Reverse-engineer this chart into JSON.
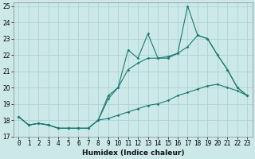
{
  "xlabel": "Humidex (Indice chaleur)",
  "bg_color": "#cce8e8",
  "grid_color": "#aad4d4",
  "line_color": "#1a7a6e",
  "xlim": [
    -0.5,
    23.5
  ],
  "ylim": [
    17,
    25.2
  ],
  "x_ticks": [
    0,
    1,
    2,
    3,
    4,
    5,
    6,
    7,
    8,
    9,
    10,
    11,
    12,
    13,
    14,
    15,
    16,
    17,
    18,
    19,
    20,
    21,
    22,
    23
  ],
  "y_ticks": [
    17,
    18,
    19,
    20,
    21,
    22,
    23,
    24,
    25
  ],
  "series_top_x": [
    0,
    1,
    2,
    3,
    4,
    5,
    6,
    7,
    8,
    9,
    10,
    11,
    12,
    13,
    14,
    15,
    16,
    17,
    18,
    19,
    20,
    21,
    22,
    23
  ],
  "series_top_y": [
    18.2,
    17.7,
    17.8,
    17.7,
    17.5,
    17.5,
    17.5,
    17.5,
    18.0,
    19.5,
    20.0,
    22.3,
    21.8,
    23.3,
    21.8,
    21.8,
    22.1,
    25.0,
    23.2,
    23.0,
    22.0,
    21.1,
    20.0,
    19.5
  ],
  "series_mid_x": [
    0,
    1,
    2,
    3,
    4,
    5,
    6,
    7,
    8,
    9,
    10,
    11,
    12,
    13,
    14,
    15,
    16,
    17,
    18,
    19,
    20,
    21,
    22,
    23
  ],
  "series_mid_y": [
    18.2,
    17.7,
    17.8,
    17.7,
    17.5,
    17.5,
    17.5,
    17.5,
    18.0,
    19.3,
    20.0,
    21.1,
    21.5,
    21.8,
    21.8,
    21.9,
    22.1,
    22.5,
    23.2,
    23.0,
    22.0,
    21.1,
    20.0,
    19.5
  ],
  "series_bot_x": [
    0,
    1,
    2,
    3,
    4,
    5,
    6,
    7,
    8,
    9,
    10,
    11,
    12,
    13,
    14,
    15,
    16,
    17,
    18,
    19,
    20,
    21,
    22,
    23
  ],
  "series_bot_y": [
    18.2,
    17.7,
    17.8,
    17.7,
    17.5,
    17.5,
    17.5,
    17.5,
    18.0,
    18.1,
    18.3,
    18.5,
    18.7,
    18.9,
    19.0,
    19.2,
    19.5,
    19.7,
    19.9,
    20.1,
    20.2,
    20.0,
    19.8,
    19.5
  ],
  "tick_fontsize": 5.5,
  "xlabel_fontsize": 6.5
}
